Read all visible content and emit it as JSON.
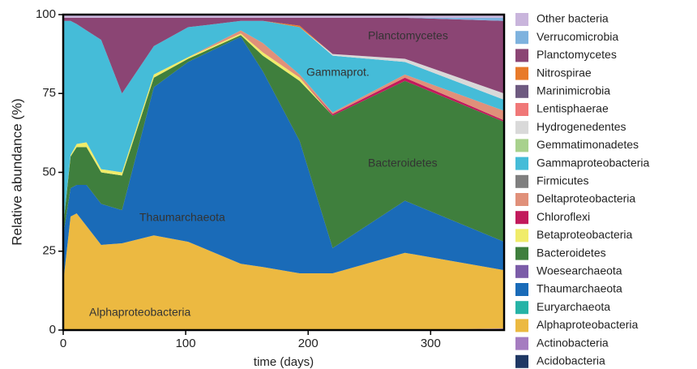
{
  "chart_data": {
    "type": "stacked_area",
    "xlabel": "time (days)",
    "ylabel": "Relative abundance (%)",
    "x": [
      0,
      6,
      11,
      19,
      31,
      48,
      74,
      102,
      145,
      163,
      193,
      220,
      279,
      360
    ],
    "xlim": [
      0,
      360
    ],
    "ylim": [
      0,
      100
    ],
    "xticks": [
      0,
      100,
      200,
      300
    ],
    "yticks": [
      0,
      25,
      50,
      75,
      100
    ],
    "annotations": [
      "Planctomycetes",
      "Gammaprot.",
      "Bacteroidetes",
      "Thaumarchaeota",
      "Alphaproteobacteria"
    ],
    "series": [
      {
        "name": "Acidobacteria",
        "color": "#1f3864",
        "values": [
          0,
          0,
          0,
          0,
          0,
          0,
          0,
          0,
          0,
          0,
          0,
          0,
          0,
          0
        ]
      },
      {
        "name": "Actinobacteria",
        "color": "#a57cc0",
        "values": [
          0,
          0,
          0,
          0,
          0,
          0,
          0,
          0,
          0,
          0,
          0,
          0,
          0,
          0.5
        ]
      },
      {
        "name": "Alphaproteobacteria",
        "color": "#ecb941",
        "values": [
          15,
          36,
          37,
          33,
          27,
          27.5,
          30,
          28,
          21,
          20,
          18,
          18,
          24.5,
          18.5
        ]
      },
      {
        "name": "Euryarchaeota",
        "color": "#26b3a6",
        "values": [
          0,
          0,
          0,
          0,
          0,
          0,
          0,
          0,
          0,
          0,
          0,
          0,
          0,
          0
        ]
      },
      {
        "name": "Thaumarchaeota",
        "color": "#1a6bb8",
        "values": [
          15,
          9,
          9,
          13,
          13,
          10.5,
          47,
          57,
          72,
          62,
          42,
          8,
          16.5,
          9
        ]
      },
      {
        "name": "Woesearchaeota",
        "color": "#7b5ca8",
        "values": [
          0,
          0,
          0,
          0,
          0,
          0,
          0,
          0,
          0,
          0,
          0,
          0,
          0,
          0
        ]
      },
      {
        "name": "Bacteroidetes",
        "color": "#3f7f3d",
        "values": [
          3,
          10,
          12,
          12,
          10,
          11,
          3,
          1,
          0.5,
          5,
          19,
          42,
          38,
          38
        ]
      },
      {
        "name": "Betaproteobacteria",
        "color": "#f0ec6a",
        "values": [
          0,
          0.5,
          1,
          1.5,
          1,
          1,
          1,
          0.5,
          0.5,
          1,
          1,
          0,
          0,
          0
        ]
      },
      {
        "name": "Chloroflexi",
        "color": "#c21a5c",
        "values": [
          0,
          0,
          0,
          0,
          0,
          0,
          0,
          0,
          0,
          0,
          0,
          0.5,
          1,
          0.5
        ]
      },
      {
        "name": "Deltaproteobacteria",
        "color": "#e0907a",
        "values": [
          0,
          0,
          0,
          0,
          0,
          0,
          0,
          0,
          1,
          3,
          1,
          0.5,
          1,
          3
        ]
      },
      {
        "name": "Firmicutes",
        "color": "#7f7f7f",
        "values": [
          0,
          0,
          0,
          0,
          0,
          0,
          0,
          0,
          0,
          0,
          0,
          0,
          0,
          0
        ]
      },
      {
        "name": "Gammaproteobacteria",
        "color": "#45bcd8",
        "values": [
          65,
          42.5,
          38,
          35.5,
          41,
          25,
          9,
          9.5,
          3,
          7,
          15,
          18,
          4,
          3.5
        ]
      },
      {
        "name": "Gemmatimonadetes",
        "color": "#a8d18d",
        "values": [
          0,
          0,
          0,
          0,
          0,
          0,
          0,
          0,
          0,
          0,
          0,
          0,
          0,
          0
        ]
      },
      {
        "name": "Hydrogenedentes",
        "color": "#d9d9d9",
        "values": [
          0,
          0,
          0,
          0,
          0,
          0,
          0,
          0,
          0,
          0,
          0,
          0.5,
          1,
          2
        ]
      },
      {
        "name": "Lentisphaerae",
        "color": "#f07878",
        "values": [
          0,
          0,
          0,
          0,
          0,
          0,
          0,
          0,
          0,
          0,
          0,
          0,
          0,
          0
        ]
      },
      {
        "name": "Marinimicrobia",
        "color": "#6e5a80",
        "values": [
          0,
          0,
          0,
          0,
          0,
          0,
          0,
          0,
          0,
          0,
          0,
          0,
          0,
          0
        ]
      },
      {
        "name": "Nitrospirae",
        "color": "#e87a2a",
        "values": [
          0,
          0,
          0,
          0,
          0,
          0,
          0,
          0,
          0,
          0,
          0.5,
          0,
          0,
          0
        ]
      },
      {
        "name": "Planctomycetes",
        "color": "#8b4574",
        "values": [
          1,
          1,
          2,
          4,
          7,
          24,
          9,
          3,
          1,
          1,
          2.5,
          11.5,
          13,
          23
        ]
      },
      {
        "name": "Verrucomicrobia",
        "color": "#7eb2de",
        "values": [
          0,
          0,
          0,
          0,
          0,
          0,
          0,
          0,
          0,
          0,
          0,
          0,
          0,
          1
        ]
      },
      {
        "name": "Other bacteria",
        "color": "#c9b5dc",
        "values": [
          1,
          1,
          1,
          1,
          1,
          1,
          1,
          1,
          1,
          1,
          1,
          1,
          1,
          1
        ]
      }
    ]
  }
}
